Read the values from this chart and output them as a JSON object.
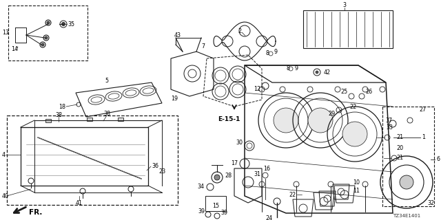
{
  "bg_color": "#ffffff",
  "diagram_code": "TZ34E1401",
  "line_color": "#1a1a1a",
  "text_color": "#000000",
  "label_fontsize": 5.8,
  "gray": "#888888",
  "light_gray": "#cccccc"
}
